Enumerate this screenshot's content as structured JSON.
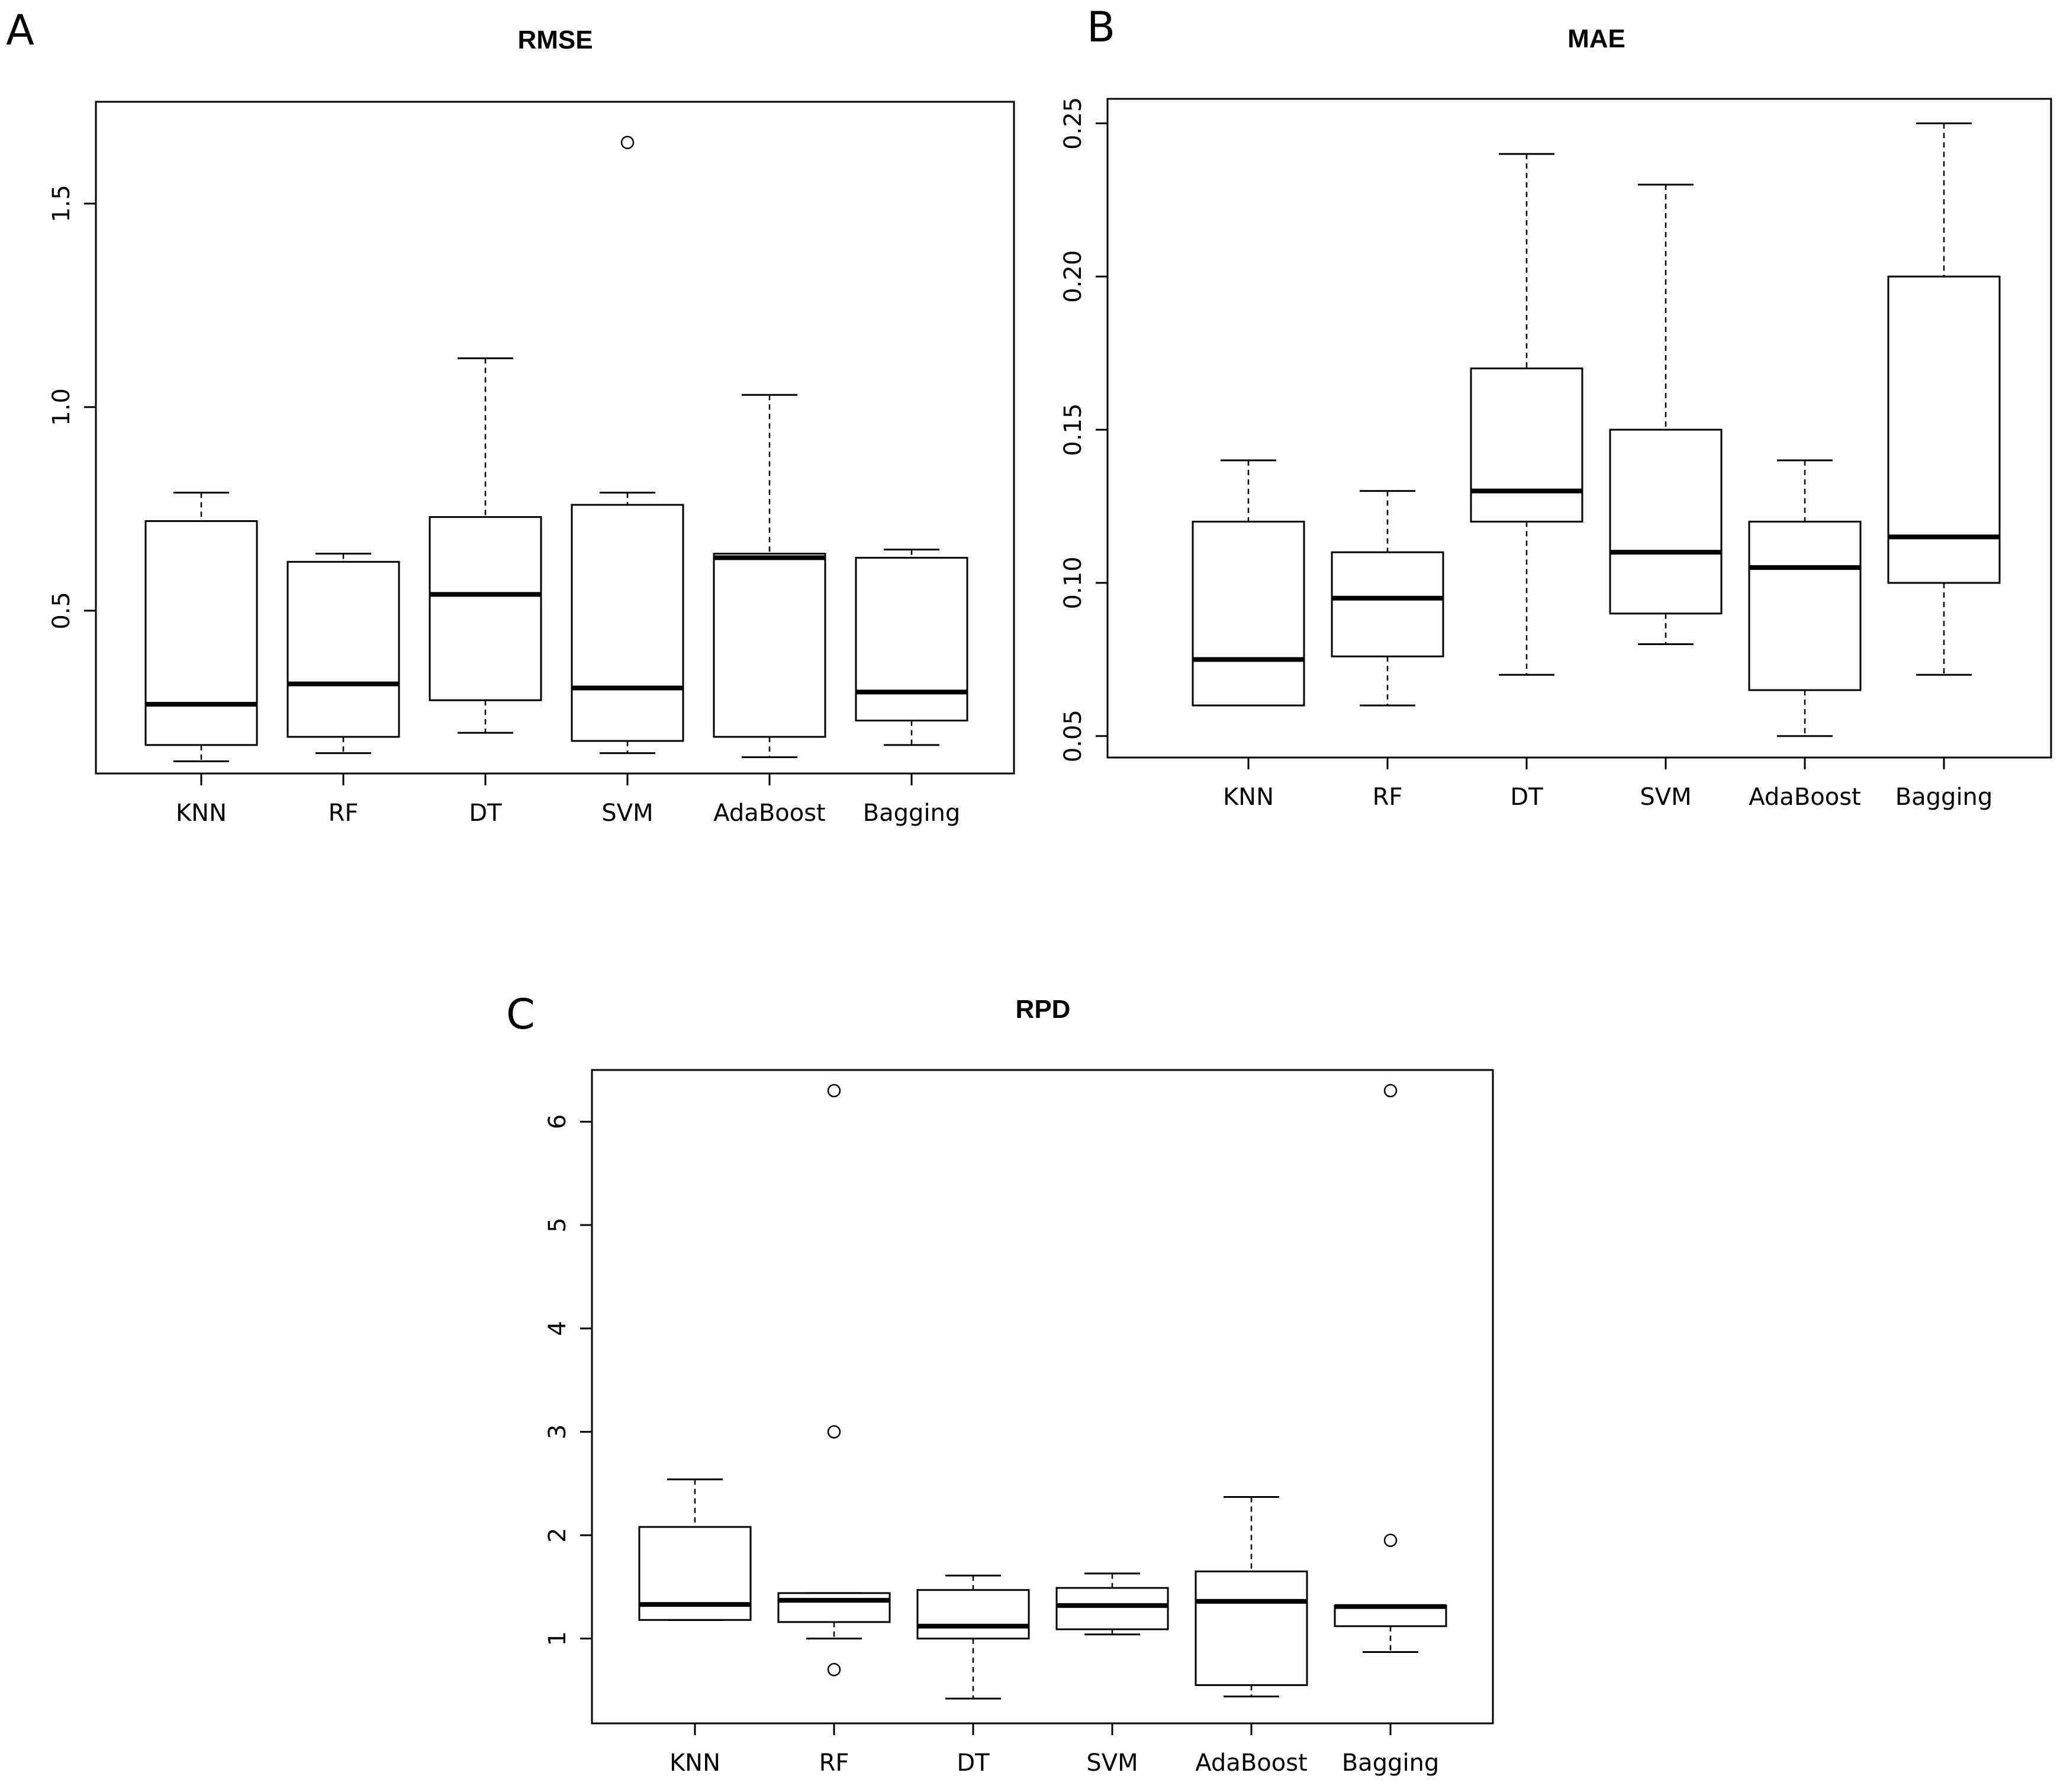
{
  "chart_data": [
    {
      "panel": "A",
      "type": "box",
      "title": "RMSE",
      "categories": [
        "KNN",
        "RF",
        "DT",
        "SVM",
        "AdaBoost",
        "Bagging"
      ],
      "ylim": [
        0.1,
        1.75
      ],
      "yticks": [
        0.5,
        1.0,
        1.5
      ],
      "ytick_labels": [
        "0.5",
        "1.0",
        "1.5"
      ],
      "boxes": [
        {
          "min": 0.13,
          "q1": 0.17,
          "median": 0.27,
          "q3": 0.72,
          "max": 0.79,
          "outliers": []
        },
        {
          "min": 0.15,
          "q1": 0.19,
          "median": 0.32,
          "q3": 0.62,
          "max": 0.64,
          "outliers": []
        },
        {
          "min": 0.2,
          "q1": 0.28,
          "median": 0.54,
          "q3": 0.73,
          "max": 1.12,
          "outliers": []
        },
        {
          "min": 0.15,
          "q1": 0.18,
          "median": 0.31,
          "q3": 0.76,
          "max": 0.79,
          "outliers": [
            1.65
          ]
        },
        {
          "min": 0.14,
          "q1": 0.19,
          "median": 0.63,
          "q3": 0.64,
          "max": 1.03,
          "outliers": []
        },
        {
          "min": 0.17,
          "q1": 0.23,
          "median": 0.3,
          "q3": 0.63,
          "max": 0.65,
          "outliers": []
        }
      ]
    },
    {
      "panel": "B",
      "type": "box",
      "title": "MAE",
      "categories": [
        "KNN",
        "RF",
        "DT",
        "SVM",
        "AdaBoost",
        "Bagging"
      ],
      "ylim": [
        0.043,
        0.258
      ],
      "yticks": [
        0.05,
        0.1,
        0.15,
        0.2,
        0.25
      ],
      "ytick_labels": [
        "0.05",
        "0.10",
        "0.15",
        "0.20",
        "0.25"
      ],
      "boxes": [
        {
          "min": 0.06,
          "q1": 0.06,
          "median": 0.075,
          "q3": 0.12,
          "max": 0.14,
          "outliers": []
        },
        {
          "min": 0.06,
          "q1": 0.076,
          "median": 0.095,
          "q3": 0.11,
          "max": 0.13,
          "outliers": []
        },
        {
          "min": 0.07,
          "q1": 0.12,
          "median": 0.13,
          "q3": 0.17,
          "max": 0.24,
          "outliers": []
        },
        {
          "min": 0.08,
          "q1": 0.09,
          "median": 0.11,
          "q3": 0.15,
          "max": 0.23,
          "outliers": []
        },
        {
          "min": 0.05,
          "q1": 0.065,
          "median": 0.105,
          "q3": 0.12,
          "max": 0.14,
          "outliers": []
        },
        {
          "min": 0.07,
          "q1": 0.1,
          "median": 0.115,
          "q3": 0.2,
          "max": 0.25,
          "outliers": []
        }
      ]
    },
    {
      "panel": "C",
      "type": "box",
      "title": "RPD",
      "categories": [
        "KNN",
        "RF",
        "DT",
        "SVM",
        "AdaBoost",
        "Bagging"
      ],
      "ylim": [
        0.18,
        6.5
      ],
      "yticks": [
        1,
        2,
        3,
        4,
        5,
        6
      ],
      "ytick_labels": [
        "1",
        "2",
        "3",
        "4",
        "5",
        "6"
      ],
      "boxes": [
        {
          "min": 1.18,
          "q1": 1.18,
          "median": 1.33,
          "q3": 2.08,
          "max": 2.54,
          "outliers": []
        },
        {
          "min": 1.0,
          "q1": 1.16,
          "median": 1.37,
          "q3": 1.44,
          "max": 1.44,
          "outliers": [
            6.3,
            3.0,
            0.7
          ]
        },
        {
          "min": 0.42,
          "q1": 1.0,
          "median": 1.12,
          "q3": 1.47,
          "max": 1.61,
          "outliers": []
        },
        {
          "min": 1.04,
          "q1": 1.09,
          "median": 1.32,
          "q3": 1.49,
          "max": 1.63,
          "outliers": []
        },
        {
          "min": 0.44,
          "q1": 0.55,
          "median": 1.36,
          "q3": 1.65,
          "max": 2.37,
          "outliers": []
        },
        {
          "min": 0.87,
          "q1": 1.12,
          "median": 1.31,
          "q3": 1.32,
          "max": 1.32,
          "outliers": [
            6.3,
            1.95
          ]
        }
      ]
    }
  ]
}
